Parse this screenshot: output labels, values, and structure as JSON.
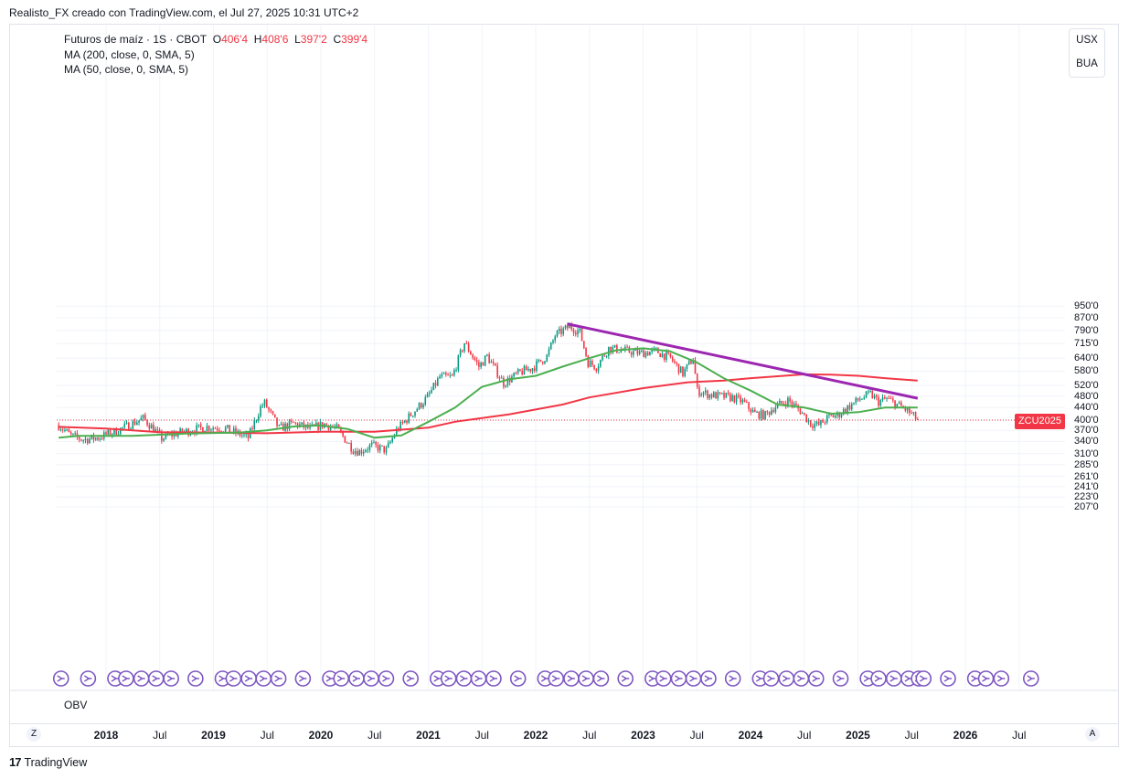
{
  "header": {
    "attribution": "Realisto_FX creado con TradingView.com, el Jul 27, 2025 10:31 UTC+2"
  },
  "legend": {
    "symbol_label": "Futuros de maíz · 1S · CBOT",
    "o_label": "O",
    "o_value": "406'4",
    "h_label": "H",
    "h_value": "408'6",
    "l_label": "L",
    "l_value": "397'2",
    "c_label": "C",
    "c_value": "399'4",
    "ma200": "MA (200, close, 0, SMA, 5)",
    "ma50": "MA (50, close, 0, SMA, 5)"
  },
  "scale_buttons": {
    "currency": "USX",
    "unit": "BUA"
  },
  "price_badge": "ZCU2025",
  "obv_label": "OBV",
  "footer": {
    "brand": "TradingView",
    "logo_icon": "tradingview-logo-icon"
  },
  "corner": {
    "left": "Z",
    "right": "A"
  },
  "colors": {
    "up": "#089981",
    "down": "#f23645",
    "ma200": "#f23645",
    "ma50": "#4caf50",
    "trendline": "#9c27b0",
    "event_icon": "#7e57c2"
  },
  "chart_data": {
    "type": "candlestick",
    "title": "Futuros de maíz · 1S · CBOT",
    "scale": "log",
    "price_ticks": [
      "950'0",
      "870'0",
      "790'0",
      "715'0",
      "640'0",
      "580'0",
      "520'0",
      "480'0",
      "440'0",
      "400'0",
      "370'0",
      "340'0",
      "310'0",
      "285'0",
      "261'0",
      "241'0",
      "223'0",
      "207'0"
    ],
    "time_ticks": [
      {
        "label": "2018",
        "year": true
      },
      {
        "label": "Jul",
        "year": false
      },
      {
        "label": "2019",
        "year": true
      },
      {
        "label": "Jul",
        "year": false
      },
      {
        "label": "2020",
        "year": true
      },
      {
        "label": "Jul",
        "year": false
      },
      {
        "label": "2021",
        "year": true
      },
      {
        "label": "Jul",
        "year": false
      },
      {
        "label": "2022",
        "year": true
      },
      {
        "label": "Jul",
        "year": false
      },
      {
        "label": "2023",
        "year": true
      },
      {
        "label": "Jul",
        "year": false
      },
      {
        "label": "2024",
        "year": true
      },
      {
        "label": "Jul",
        "year": false
      },
      {
        "label": "2025",
        "year": true
      },
      {
        "label": "Jul",
        "year": false
      },
      {
        "label": "2026",
        "year": true
      },
      {
        "label": "Jul",
        "year": false
      }
    ],
    "price_path": [
      [
        "2017-07-24",
        385
      ],
      [
        "2017-09-04",
        355
      ],
      [
        "2017-10-16",
        345
      ],
      [
        "2017-12-04",
        350
      ],
      [
        "2018-02-05",
        368
      ],
      [
        "2018-05-07",
        405
      ],
      [
        "2018-06-11",
        375
      ],
      [
        "2018-07-09",
        348
      ],
      [
        "2018-08-20",
        360
      ],
      [
        "2018-10-15",
        370
      ],
      [
        "2018-12-10",
        380
      ],
      [
        "2019-02-11",
        375
      ],
      [
        "2019-04-29",
        350
      ],
      [
        "2019-06-10",
        440
      ],
      [
        "2019-06-24",
        455
      ],
      [
        "2019-08-12",
        375
      ],
      [
        "2019-09-30",
        390
      ],
      [
        "2019-11-25",
        375
      ],
      [
        "2020-01-13",
        388
      ],
      [
        "2020-02-24",
        375
      ],
      [
        "2020-04-20",
        320
      ],
      [
        "2020-05-11",
        315
      ],
      [
        "2020-06-22",
        330
      ],
      [
        "2020-08-10",
        318
      ],
      [
        "2020-09-14",
        370
      ],
      [
        "2020-10-26",
        410
      ],
      [
        "2020-12-28",
        475
      ],
      [
        "2021-02-08",
        555
      ],
      [
        "2021-03-22",
        555
      ],
      [
        "2021-05-03",
        720
      ],
      [
        "2021-06-21",
        600
      ],
      [
        "2021-07-19",
        650
      ],
      [
        "2021-09-13",
        530
      ],
      [
        "2021-11-08",
        575
      ],
      [
        "2021-12-20",
        595
      ],
      [
        "2022-02-07",
        650
      ],
      [
        "2022-03-07",
        760
      ],
      [
        "2022-04-25",
        815
      ],
      [
        "2022-05-30",
        780
      ],
      [
        "2022-06-27",
        620
      ],
      [
        "2022-07-25",
        600
      ],
      [
        "2022-09-05",
        690
      ],
      [
        "2022-10-24",
        680
      ],
      [
        "2022-12-19",
        665
      ],
      [
        "2023-02-13",
        675
      ],
      [
        "2023-04-03",
        640
      ],
      [
        "2023-05-15",
        570
      ],
      [
        "2023-06-19",
        640
      ],
      [
        "2023-07-03",
        500
      ],
      [
        "2023-08-14",
        485
      ],
      [
        "2023-09-18",
        480
      ],
      [
        "2023-10-30",
        475
      ],
      [
        "2023-12-04",
        460
      ],
      [
        "2024-01-15",
        420
      ],
      [
        "2024-02-19",
        415
      ],
      [
        "2024-03-18",
        440
      ],
      [
        "2024-05-06",
        465
      ],
      [
        "2024-06-17",
        430
      ],
      [
        "2024-07-22",
        390
      ],
      [
        "2024-08-19",
        385
      ],
      [
        "2024-09-23",
        410
      ],
      [
        "2024-10-21",
        415
      ],
      [
        "2024-11-25",
        440
      ],
      [
        "2025-01-06",
        470
      ],
      [
        "2025-02-10",
        488
      ],
      [
        "2025-03-10",
        460
      ],
      [
        "2025-04-07",
        470
      ],
      [
        "2025-05-12",
        450
      ],
      [
        "2025-06-16",
        430
      ],
      [
        "2025-07-21",
        400
      ]
    ],
    "ma200": [
      [
        "2017-07-24",
        380
      ],
      [
        "2018-01-01",
        375
      ],
      [
        "2018-07-01",
        365
      ],
      [
        "2019-01-01",
        364
      ],
      [
        "2019-07-01",
        362
      ],
      [
        "2020-01-01",
        366
      ],
      [
        "2020-07-01",
        366
      ],
      [
        "2021-01-01",
        378
      ],
      [
        "2021-04-01",
        395
      ],
      [
        "2021-10-01",
        418
      ],
      [
        "2022-04-01",
        450
      ],
      [
        "2022-07-01",
        475
      ],
      [
        "2023-01-01",
        510
      ],
      [
        "2023-06-01",
        533
      ],
      [
        "2023-10-01",
        540
      ],
      [
        "2024-01-01",
        550
      ],
      [
        "2024-07-01",
        566
      ],
      [
        "2024-10-01",
        565
      ],
      [
        "2025-01-01",
        560
      ],
      [
        "2025-04-01",
        550
      ],
      [
        "2025-07-21",
        540
      ]
    ],
    "ma50": [
      [
        "2017-07-24",
        350
      ],
      [
        "2017-10-01",
        355
      ],
      [
        "2018-04-01",
        355
      ],
      [
        "2018-10-01",
        361
      ],
      [
        "2019-04-01",
        364
      ],
      [
        "2019-07-01",
        370
      ],
      [
        "2019-10-01",
        381
      ],
      [
        "2020-01-01",
        384
      ],
      [
        "2020-04-01",
        374
      ],
      [
        "2020-07-01",
        350
      ],
      [
        "2020-10-01",
        356
      ],
      [
        "2021-01-01",
        395
      ],
      [
        "2021-04-01",
        440
      ],
      [
        "2021-07-01",
        515
      ],
      [
        "2021-10-01",
        545
      ],
      [
        "2022-01-01",
        560
      ],
      [
        "2022-04-01",
        600
      ],
      [
        "2022-07-01",
        640
      ],
      [
        "2022-10-01",
        680
      ],
      [
        "2023-01-01",
        690
      ],
      [
        "2023-04-01",
        675
      ],
      [
        "2023-07-01",
        620
      ],
      [
        "2023-10-01",
        550
      ],
      [
        "2024-01-01",
        500
      ],
      [
        "2024-04-01",
        450
      ],
      [
        "2024-07-01",
        440
      ],
      [
        "2024-10-01",
        420
      ],
      [
        "2025-01-01",
        425
      ],
      [
        "2025-04-01",
        440
      ],
      [
        "2025-07-21",
        440
      ]
    ],
    "trendline": [
      [
        "2022-04-18",
        830
      ],
      [
        "2025-07-21",
        472
      ]
    ],
    "last_price": 400,
    "events": [
      "2017-08-01",
      "2017-11-01",
      "2018-02-01",
      "2018-03-10",
      "2018-05-01",
      "2018-06-20",
      "2018-08-10",
      "2018-11-01",
      "2019-02-01",
      "2019-03-10",
      "2019-05-01",
      "2019-06-20",
      "2019-08-10",
      "2019-11-01",
      "2020-02-01",
      "2020-03-10",
      "2020-05-01",
      "2020-06-20",
      "2020-08-10",
      "2020-11-01",
      "2021-02-01",
      "2021-03-10",
      "2021-05-01",
      "2021-06-20",
      "2021-08-10",
      "2021-11-01",
      "2022-02-01",
      "2022-03-10",
      "2022-05-01",
      "2022-06-20",
      "2022-08-10",
      "2022-11-01",
      "2023-02-01",
      "2023-03-10",
      "2023-05-01",
      "2023-06-20",
      "2023-08-10",
      "2023-11-01",
      "2024-02-01",
      "2024-03-10",
      "2024-05-01",
      "2024-06-20",
      "2024-08-10",
      "2024-11-01",
      "2025-02-01",
      "2025-03-10",
      "2025-05-01",
      "2025-06-20",
      "2025-07-25",
      "2025-08-10",
      "2025-11-01",
      "2026-02-01",
      "2026-03-10",
      "2026-05-01",
      "2026-08-10"
    ]
  }
}
